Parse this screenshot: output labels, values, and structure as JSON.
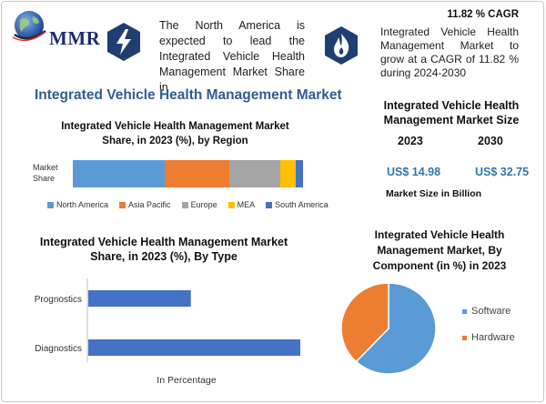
{
  "brand": {
    "logo_text": "MMR"
  },
  "header": {
    "north_america_text": "The North America is expected to lead the Integrated Vehicle Health Management Market Share in",
    "cagr_title": "11.82 % CAGR",
    "cagr_text": "Integrated Vehicle Health Management Market to grow at a CAGR of 11.82 % during 2024-2030"
  },
  "main_title": "Integrated Vehicle Health Management Market",
  "market_size": {
    "title": "Integrated Vehicle Health Management Market Size",
    "year_start": "2023",
    "year_end": "2030",
    "value_start": "US$ 14.98",
    "value_end": "US$ 32.75",
    "unit_label": "Market Size in Billion"
  },
  "colors": {
    "north_america": "#5b9bd5",
    "asia_pacific": "#ed7d31",
    "europe": "#a5a5a5",
    "mea": "#ffc000",
    "south_america": "#4472c4",
    "software": "#5b9bd5",
    "hardware": "#ed7d31"
  },
  "icons": {
    "left": "lightning-icon",
    "right": "flame-icon"
  },
  "chart_data": [
    {
      "type": "bar",
      "orientation": "horizontal-stacked",
      "title": "Integrated Vehicle Health Management Market Share, in 2023 (%), by Region",
      "categories": [
        "Market Share"
      ],
      "series": [
        {
          "name": "North America",
          "values": [
            40
          ]
        },
        {
          "name": "Asia Pacific",
          "values": [
            28
          ]
        },
        {
          "name": "Europe",
          "values": [
            22
          ]
        },
        {
          "name": "MEA",
          "values": [
            7
          ]
        },
        {
          "name": "South America",
          "values": [
            3
          ]
        }
      ],
      "legend": "bottom"
    },
    {
      "type": "bar",
      "orientation": "horizontal",
      "title": "Integrated Vehicle Health Management Market Share, in 2023 (%), By Type",
      "categories": [
        "Prognostics",
        "Diagnostics"
      ],
      "values": [
        30,
        70
      ],
      "xlabel": "In Percentage",
      "xlim": [
        0,
        100
      ]
    },
    {
      "type": "pie",
      "title": "Integrated Vehicle Health Management Market, By Component (in %) in 2023",
      "categories": [
        "Software",
        "Hardware"
      ],
      "values": [
        62,
        38
      ],
      "legend": "right"
    }
  ]
}
